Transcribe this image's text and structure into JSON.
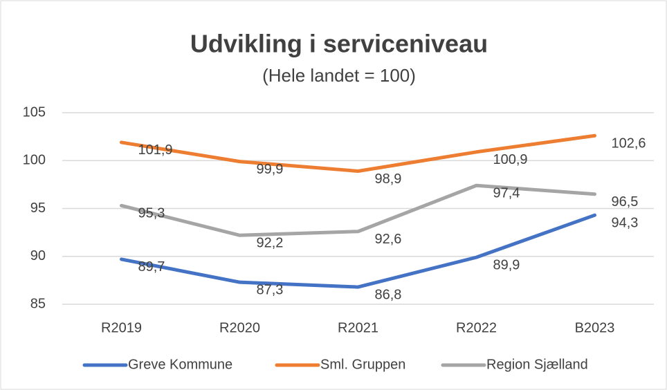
{
  "chart_data": {
    "type": "line",
    "title": "Udvikling i serviceniveau",
    "subtitle": "(Hele landet = 100)",
    "categories": [
      "R2019",
      "R2020",
      "R2021",
      "R2022",
      "B2023"
    ],
    "series": [
      {
        "name": "Greve Kommune",
        "color": "#4472c4",
        "values": [
          89.7,
          87.3,
          86.8,
          89.9,
          94.3
        ],
        "value_labels": [
          "89,7",
          "87,3",
          "86,8",
          "89,9",
          "94,3"
        ]
      },
      {
        "name": "Sml. Gruppen",
        "color": "#ed7d31",
        "values": [
          101.9,
          99.9,
          98.9,
          100.9,
          102.6
        ],
        "value_labels": [
          "101,9",
          "99,9",
          "98,9",
          "100,9",
          "102,6"
        ]
      },
      {
        "name": "Region Sjælland",
        "color": "#a5a5a5",
        "values": [
          95.3,
          92.2,
          92.6,
          97.4,
          96.5
        ],
        "value_labels": [
          "95,3",
          "92,2",
          "92,6",
          "97,4",
          "96,5"
        ]
      }
    ],
    "ylim": [
      85,
      105
    ],
    "yticks": [
      85,
      90,
      95,
      100,
      105
    ],
    "grid": true,
    "legend": "bottom"
  }
}
